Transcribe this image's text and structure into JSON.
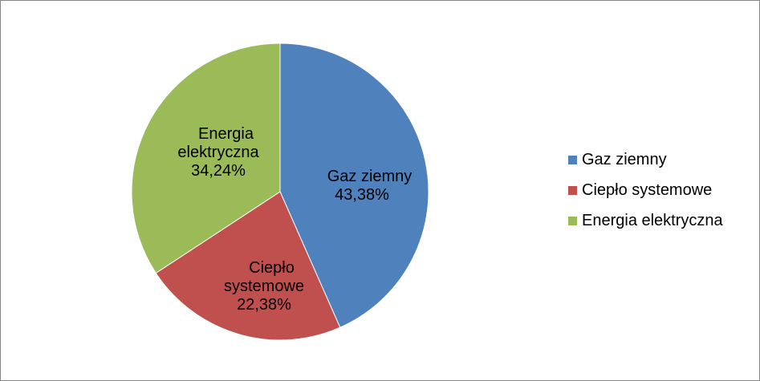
{
  "chart_data": {
    "type": "pie",
    "title": "",
    "categories": [
      "Gaz ziemny",
      "Ciepło systemowe",
      "Energia elektryczna"
    ],
    "values": [
      43.38,
      22.38,
      34.24
    ],
    "value_labels": [
      "43,38%",
      "22,38%",
      "34,24%"
    ],
    "label_lines": [
      [
        "Gaz ziemny"
      ],
      [
        "Ciepło",
        "systemowe"
      ],
      [
        "Energia",
        "elektryczna"
      ]
    ],
    "colors": [
      "#4F81BD",
      "#C0504D",
      "#9BBB59"
    ],
    "start_angle_deg": 0,
    "direction": "clockwise",
    "legend_position": "right"
  }
}
